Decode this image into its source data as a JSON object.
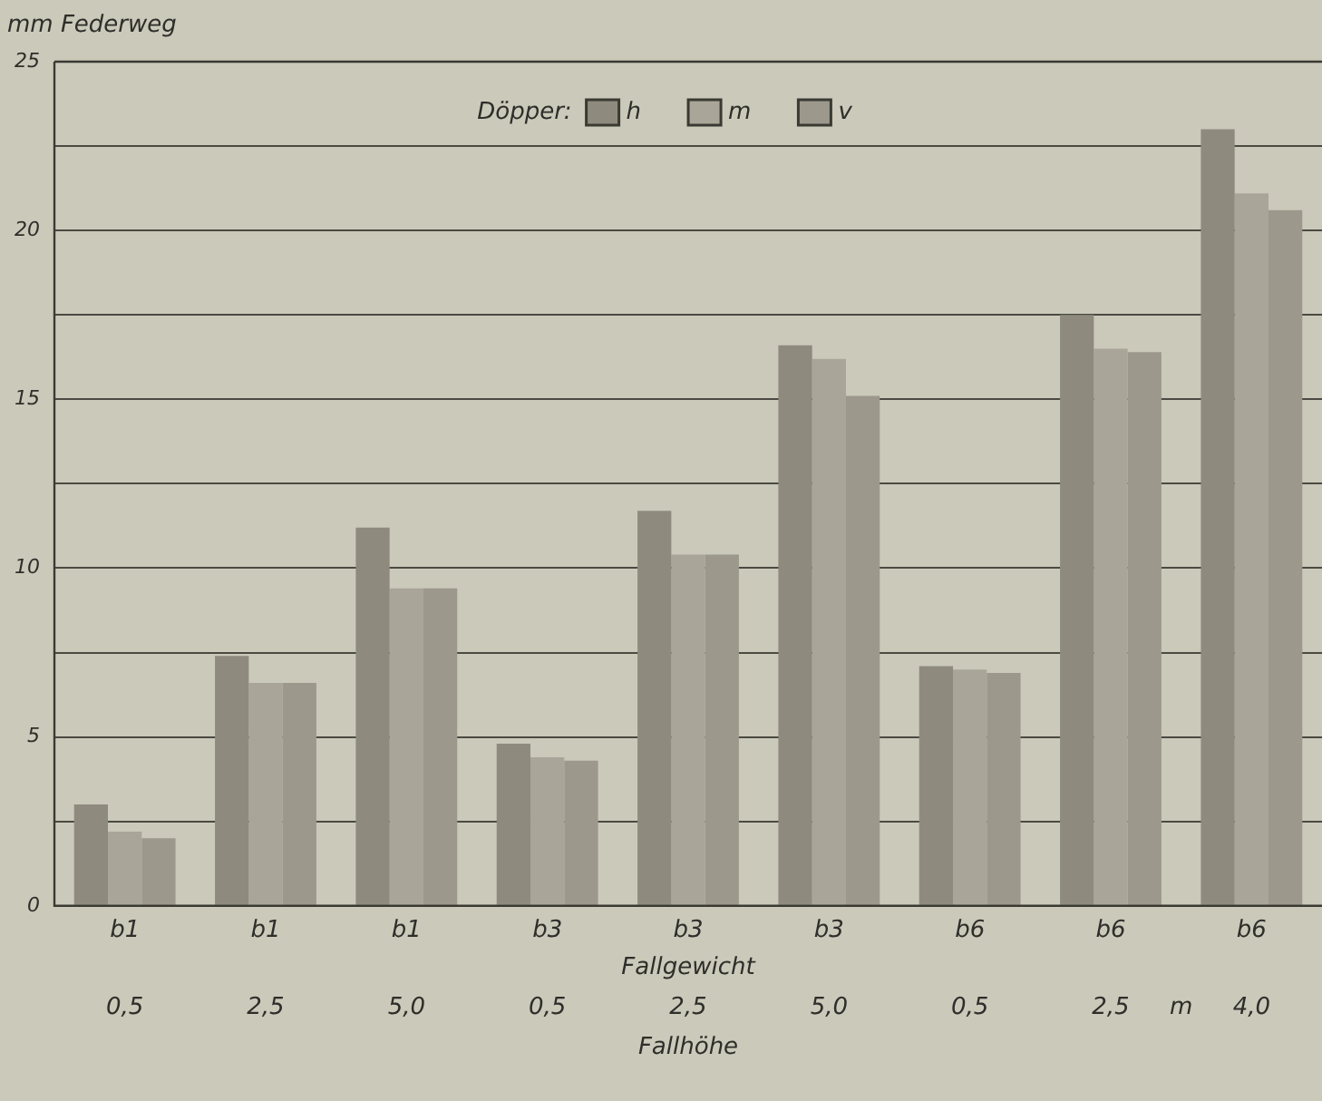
{
  "chart_data": {
    "type": "bar",
    "ylabel": "mm Federweg",
    "xlabel": "Fallgewicht",
    "legend_title": "Döpper:",
    "legend": "top",
    "grid": "y",
    "categories": [
      "b1",
      "b1",
      "b1",
      "b3",
      "b3",
      "b3",
      "b6",
      "b6",
      "b6"
    ],
    "annotations": [
      "0,5",
      "2,5",
      "5,0",
      "0,5",
      "2,5",
      "5,0",
      "0,5",
      "2,5",
      "4,0",
      "m",
      "Fallhöhe"
    ],
    "ylim": [
      0,
      25
    ],
    "yticks": [
      0,
      {
        "value": 2.5,
        "label": null
      },
      5,
      {
        "value": 7.5,
        "label": null
      },
      10,
      {
        "value": 12.5,
        "label": null
      },
      15,
      {
        "value": 17.5,
        "label": null
      },
      20,
      {
        "value": 22.5,
        "label": null
      },
      25
    ],
    "series": [
      {
        "name": "h",
        "color": "#8e8b7e",
        "values": [
          3.0,
          7.4,
          11.2,
          4.8,
          11.7,
          16.6,
          7.1,
          17.5,
          23.0
        ]
      },
      {
        "name": "m",
        "color": "#a9a699",
        "values": [
          2.2,
          6.6,
          9.4,
          4.4,
          10.4,
          16.2,
          7.0,
          16.5,
          21.1
        ]
      },
      {
        "name": "v",
        "color": "#9c998c",
        "values": [
          2.0,
          6.6,
          9.4,
          4.3,
          10.4,
          15.1,
          6.9,
          16.4,
          20.6
        ]
      }
    ]
  }
}
